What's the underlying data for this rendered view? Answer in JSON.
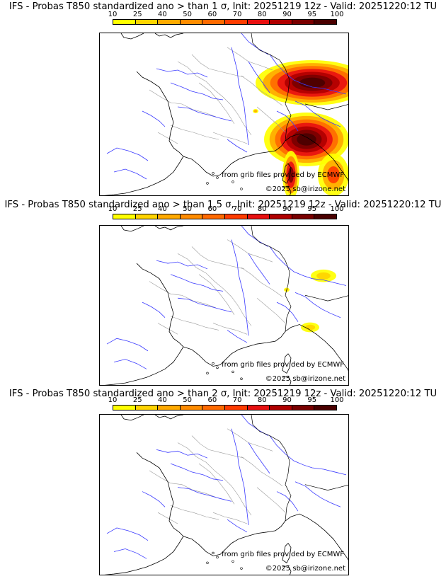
{
  "panels": [
    {
      "title": "IFS - Probas T850  standardized ano > than 1 σ, Init: 20251219 12z - Valid: 20251220:12 TU",
      "map_source": "from grib files provided by ECMWF",
      "map_copyright": "©2025 sb@irizone.net"
    },
    {
      "title": "IFS - Probas T850  standardized ano > than 1.5 σ, Init: 20251219 12z - Valid: 20251220:12 TU",
      "map_source": "from grib files provided by ECMWF",
      "map_copyright": "©2025 sb@irizone.net"
    },
    {
      "title": "IFS - Probas T850  standardized ano > than 2 σ, Init: 20251219 12z - Valid: 20251220:12 TU",
      "map_source": "from grib files provided by ECMWF",
      "map_copyright": "©2025 sb@irizone.net"
    }
  ],
  "colorbar": {
    "labels": [
      "10",
      "25",
      "40",
      "50",
      "60",
      "70",
      "80",
      "90",
      "95",
      "100"
    ],
    "colors": [
      "#ffff00",
      "#ffd400",
      "#ffaa00",
      "#ff8c00",
      "#ff6a00",
      "#ff3c00",
      "#e81010",
      "#b00000",
      "#7a0000",
      "#4a0000"
    ]
  },
  "map_colors": {
    "coast": "#000000",
    "rivers": "#3a3aff",
    "borders": "#9a9a9a"
  }
}
